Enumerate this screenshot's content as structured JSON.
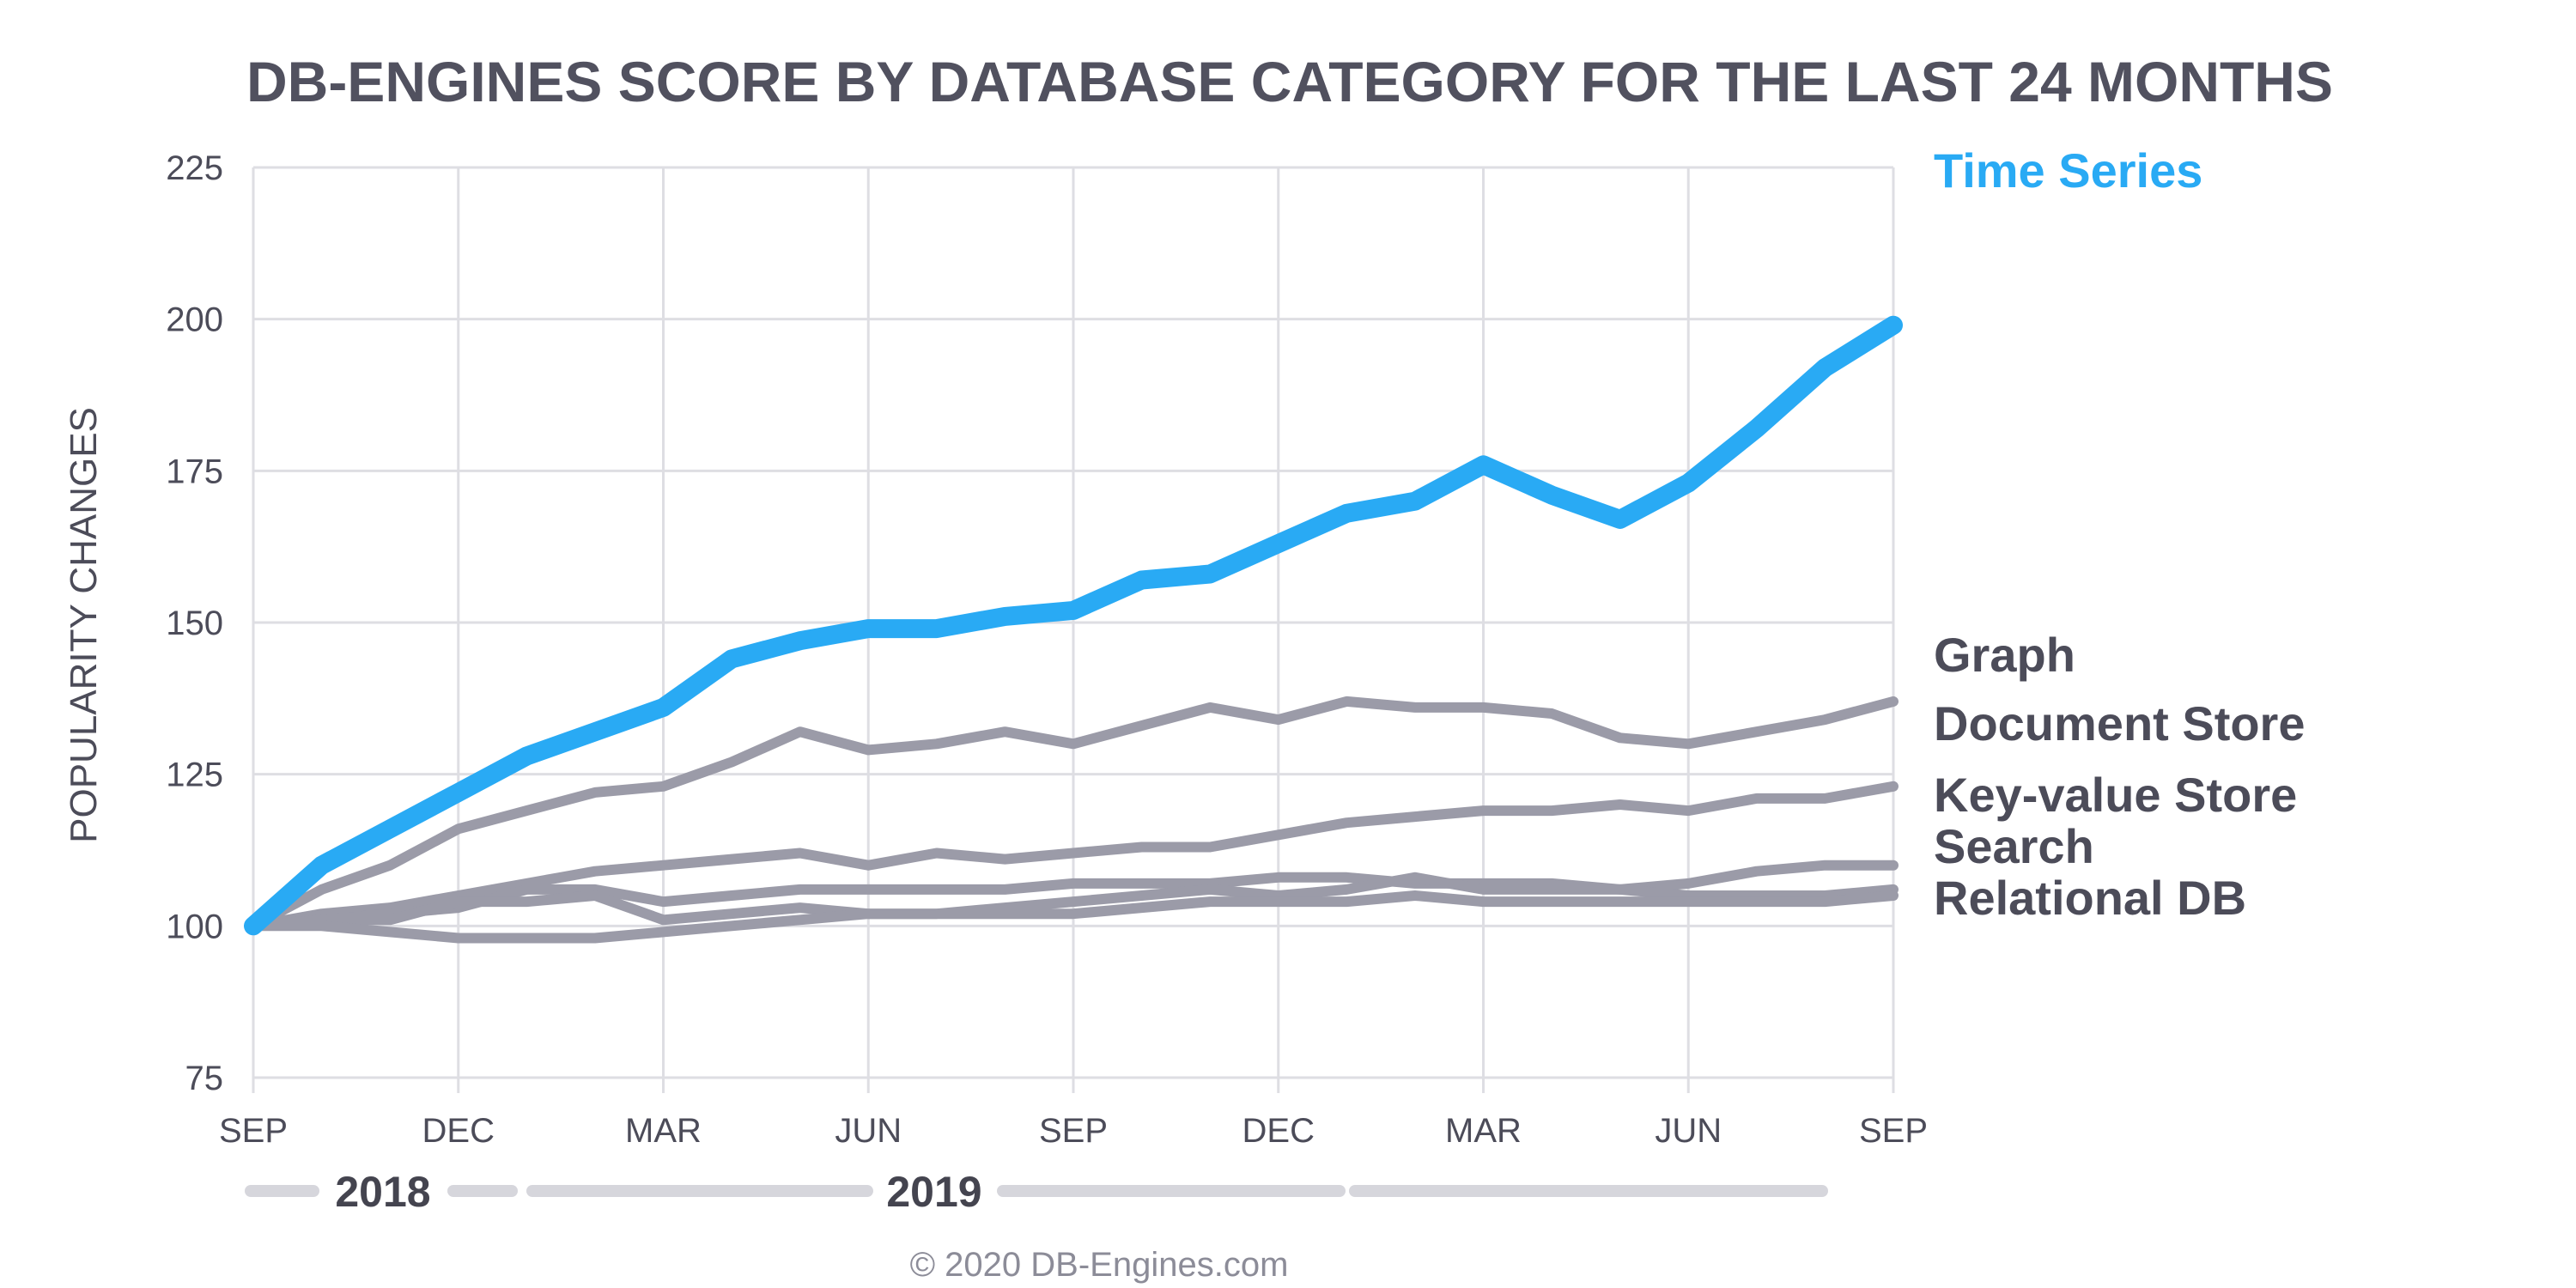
{
  "chart_data": {
    "type": "line",
    "title": "DB-ENGINES SCORE BY DATABASE CATEGORY FOR THE LAST 24 MONTHS",
    "ylabel": "POPULARITY CHANGES",
    "xlabel": "",
    "ylim": [
      75,
      225
    ],
    "yticks": [
      75,
      100,
      125,
      150,
      175,
      200,
      225
    ],
    "x_tick_labels": [
      "SEP",
      "DEC",
      "MAR",
      "JUN",
      "SEP",
      "DEC",
      "MAR",
      "JUN",
      "SEP"
    ],
    "x_tick_months": [
      0,
      3,
      6,
      9,
      12,
      15,
      18,
      21,
      24
    ],
    "x": [
      0,
      1,
      2,
      3,
      4,
      5,
      6,
      7,
      8,
      9,
      10,
      11,
      12,
      13,
      14,
      15,
      16,
      17,
      18,
      19,
      20,
      21,
      22,
      23,
      24
    ],
    "year_labels": [
      "2018",
      "2019"
    ],
    "grid": true,
    "legend": "right",
    "colors": {
      "highlight": "#29aaf4",
      "other": "#9b9ba8"
    },
    "series": [
      {
        "name": "Time Series",
        "highlight": true,
        "values": [
          100,
          110,
          116,
          122,
          128,
          132,
          136,
          144,
          147,
          149,
          149,
          151,
          152,
          157,
          158,
          163,
          168,
          170,
          176,
          171,
          167,
          173,
          182,
          192,
          199
        ]
      },
      {
        "name": "Graph",
        "highlight": false,
        "values": [
          100,
          106,
          110,
          116,
          119,
          122,
          123,
          127,
          132,
          129,
          130,
          132,
          130,
          133,
          136,
          134,
          137,
          136,
          136,
          135,
          131,
          130,
          132,
          134,
          137
        ]
      },
      {
        "name": "Document Store",
        "highlight": false,
        "values": [
          100,
          102,
          103,
          105,
          107,
          109,
          110,
          111,
          112,
          110,
          112,
          111,
          112,
          113,
          113,
          115,
          117,
          118,
          119,
          119,
          120,
          119,
          121,
          121,
          123
        ]
      },
      {
        "name": "Key-value Store",
        "highlight": false,
        "values": [
          100,
          101,
          102,
          103,
          106,
          106,
          104,
          105,
          106,
          106,
          106,
          106,
          107,
          107,
          107,
          108,
          108,
          107,
          107,
          107,
          106,
          107,
          109,
          110,
          110
        ]
      },
      {
        "name": "Search",
        "highlight": false,
        "values": [
          100,
          101,
          101,
          104,
          104,
          105,
          101,
          102,
          103,
          102,
          102,
          103,
          104,
          105,
          106,
          105,
          106,
          108,
          106,
          106,
          106,
          105,
          105,
          105,
          106
        ]
      },
      {
        "name": "Relational DB",
        "highlight": false,
        "values": [
          100,
          100,
          99,
          98,
          98,
          98,
          99,
          100,
          101,
          102,
          102,
          102,
          102,
          103,
          104,
          104,
          104,
          105,
          104,
          104,
          104,
          104,
          104,
          104,
          105
        ]
      }
    ],
    "series_label_order": [
      "Time Series",
      "Graph",
      "Document Store",
      "Key-value Store",
      "Search",
      "Relational DB"
    ]
  },
  "footer": {
    "copyright": "© 2020 DB-Engines.com"
  }
}
